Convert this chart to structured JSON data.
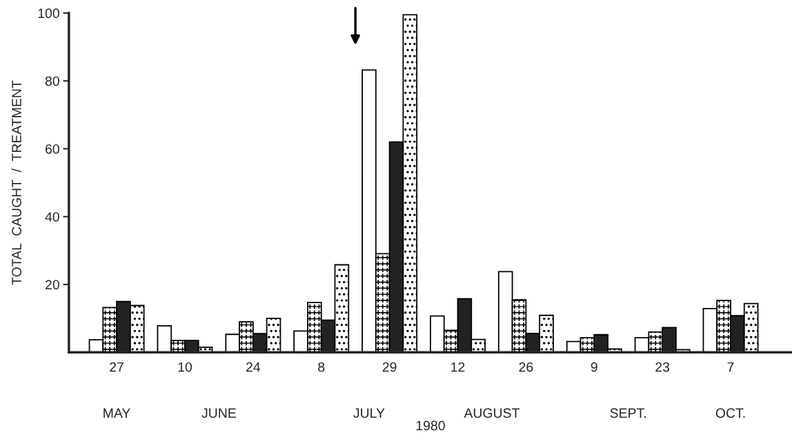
{
  "chart_data": {
    "type": "bar",
    "xlabel": "1980",
    "ylabel": "TOTAL  CAUGHT  /  TREATMENT",
    "categories": [
      "27",
      "10",
      "24",
      "8",
      "29",
      "12",
      "26",
      "9",
      "23",
      "7"
    ],
    "series": [
      {
        "color": "#ffffff",
        "values": [
          3.7,
          7.8,
          5.3,
          6.3,
          83.2,
          10.7,
          23.8,
          3.2,
          4.3,
          12.9
        ]
      },
      {
        "color": "#ffffff",
        "values": [
          13.2,
          3.5,
          9,
          14.7,
          29.1,
          6.5,
          15.5,
          4.3,
          6.0,
          15.3
        ]
      },
      {
        "color": "#222222",
        "values": [
          15,
          3.5,
          5.5,
          9.5,
          62,
          15.8,
          5.6,
          5.2,
          7.3,
          10.8
        ]
      },
      {
        "color": "#ffffff",
        "values": [
          13.8,
          1.5,
          10,
          25.8,
          99.5,
          3.8,
          10.9,
          1.0,
          0.8,
          14.4
        ]
      }
    ],
    "annotations": [
      "MAY",
      "JUNE",
      "JULY",
      "AUGUST",
      "SEPT.",
      "OCT."
    ],
    "ylim": [
      0,
      100
    ],
    "yticks": [
      20,
      40,
      60,
      80,
      100
    ],
    "grid": false
  }
}
